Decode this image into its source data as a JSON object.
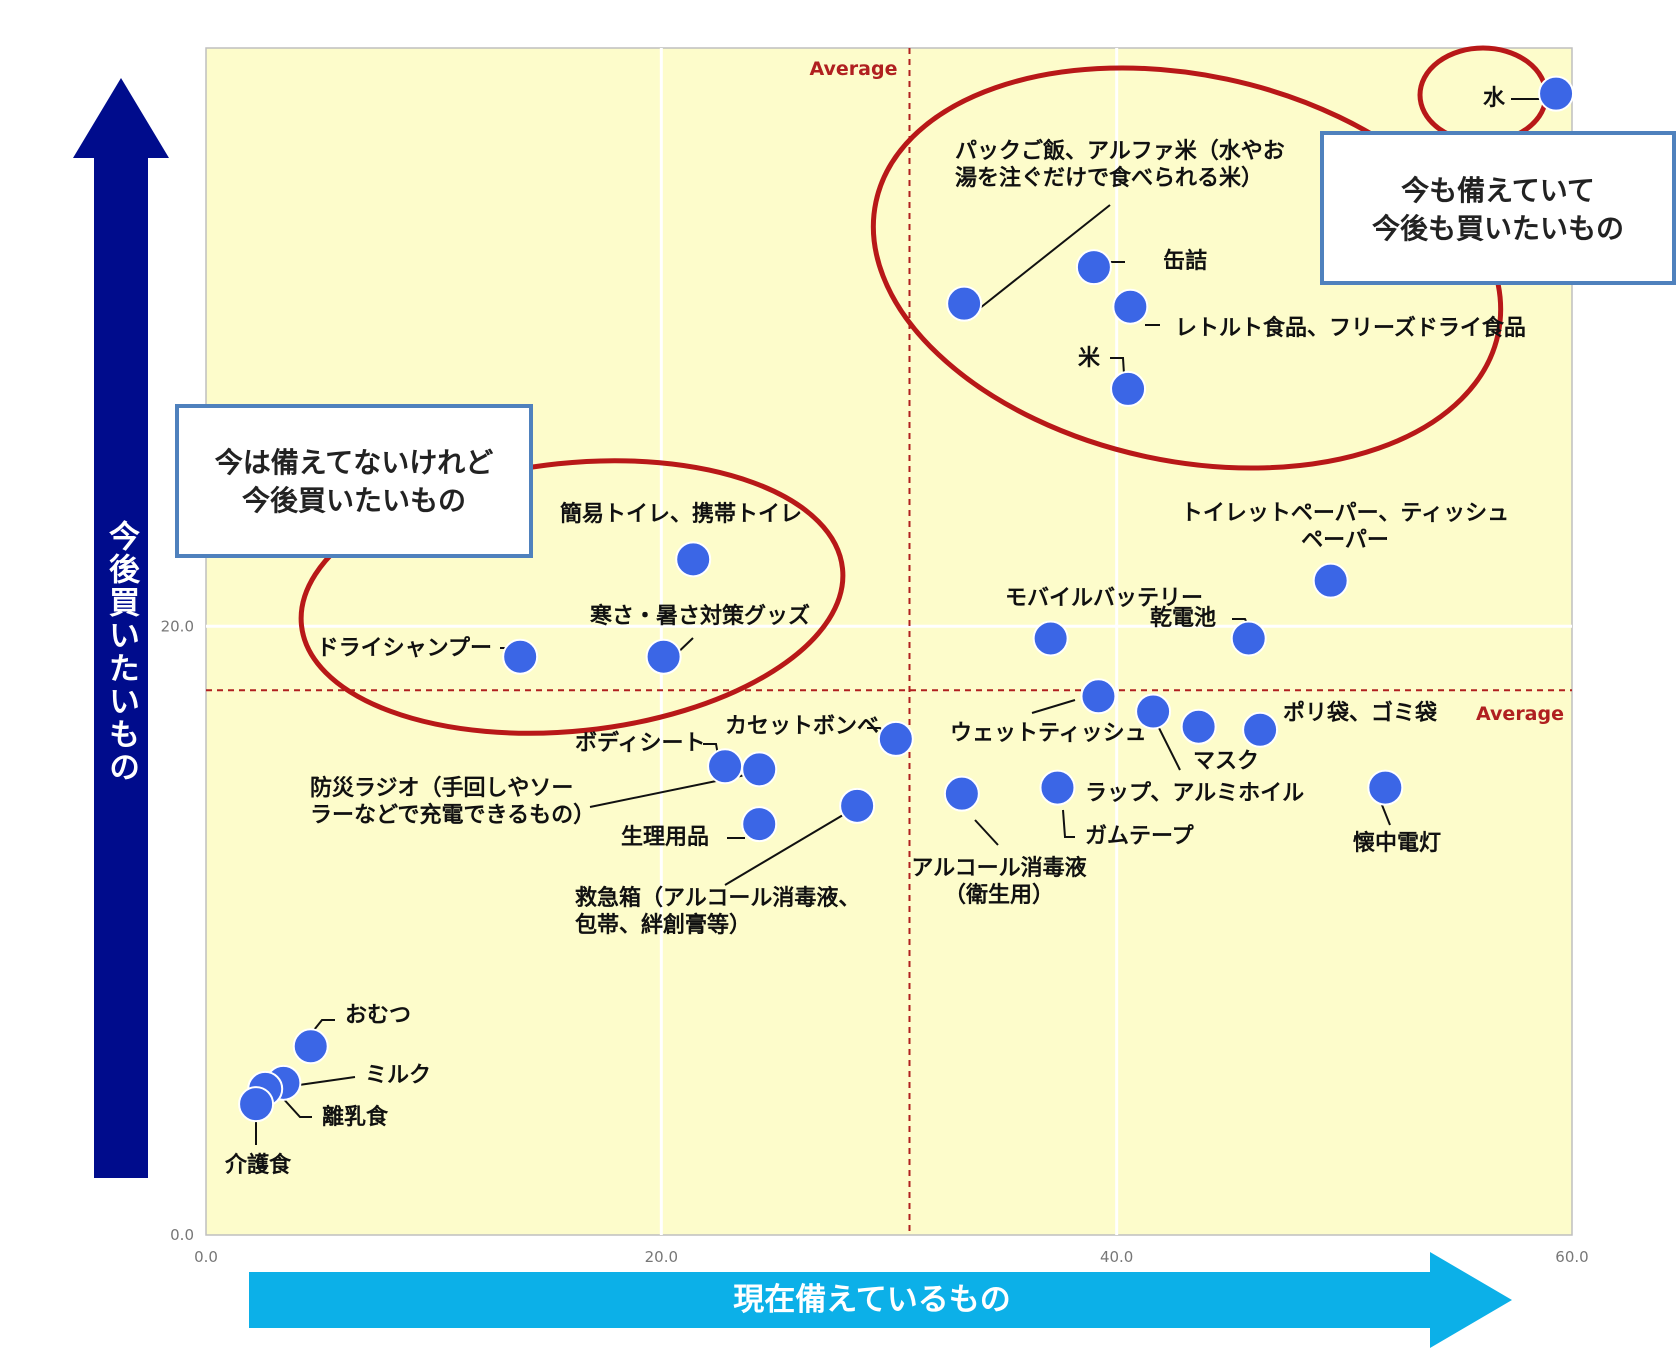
{
  "chart_data": {
    "type": "scatter",
    "xlabel": "現在備えているもの",
    "ylabel": "今後買いたいもの",
    "xlim": [
      0,
      60
    ],
    "ylim": [
      0,
      39
    ],
    "xticks": [
      "0.0",
      "20.0",
      "40.0",
      "60.0"
    ],
    "yticks": [
      "0.0",
      "20.0"
    ],
    "average_label": "Average",
    "average_x": 30.9,
    "average_y": 17.9,
    "grid": true,
    "colors": {
      "point": "#3b66e6",
      "plot_bg": "#fdfccb",
      "grid": "#ffffff",
      "average_line": "#b02020",
      "ellipse": "#b81818",
      "x_arrow": "#0cb0e8",
      "y_arrow": "#000c8c",
      "callout_border": "#4f81bd"
    },
    "points": [
      {
        "name": "水",
        "x": 59.3,
        "y": 37.5
      },
      {
        "name": "パックご飯、アルファ米（水やお湯を注ぐだけで食べられる米）",
        "x": 33.3,
        "y": 30.6
      },
      {
        "name": "缶詰",
        "x": 39.0,
        "y": 31.8
      },
      {
        "name": "レトルト食品、フリーズドライ食品",
        "x": 40.6,
        "y": 30.5
      },
      {
        "name": "米",
        "x": 40.5,
        "y": 27.8
      },
      {
        "name": "トイレットペーパー、ティッシュペーパー",
        "x": 49.4,
        "y": 21.5
      },
      {
        "name": "乾電池",
        "x": 45.8,
        "y": 19.6
      },
      {
        "name": "モバイルバッテリー",
        "x": 37.1,
        "y": 19.6
      },
      {
        "name": "ウェットティッシュ",
        "x": 39.2,
        "y": 17.7
      },
      {
        "name": "ポリ袋、ゴミ袋",
        "x": 46.3,
        "y": 16.6
      },
      {
        "name": "マスク",
        "x": 43.6,
        "y": 16.7
      },
      {
        "name": "ラップ、アルミホイル",
        "x": 41.6,
        "y": 17.2
      },
      {
        "name": "ガムテープ",
        "x": 37.4,
        "y": 14.7
      },
      {
        "name": "懐中電灯",
        "x": 51.8,
        "y": 14.7
      },
      {
        "name": "アルコール消毒液（衛生用）",
        "x": 33.2,
        "y": 14.5
      },
      {
        "name": "簡易トイレ、携帯トイレ",
        "x": 21.4,
        "y": 22.2
      },
      {
        "name": "寒さ・暑さ対策グッズ",
        "x": 20.1,
        "y": 19.0
      },
      {
        "name": "ドライシャンプー",
        "x": 13.8,
        "y": 19.0
      },
      {
        "name": "カセットボンベ",
        "x": 30.3,
        "y": 16.3
      },
      {
        "name": "ボディシート",
        "x": 22.8,
        "y": 15.4
      },
      {
        "name": "防災ラジオ（手回しやソーラーなどで充電できるもの）",
        "x": 24.3,
        "y": 15.3
      },
      {
        "name": "生理用品",
        "x": 24.3,
        "y": 13.5
      },
      {
        "name": "救急箱（アルコール消毒液、包帯、絆創膏等）",
        "x": 28.6,
        "y": 14.1
      },
      {
        "name": "おむつ",
        "x": 4.6,
        "y": 6.2
      },
      {
        "name": "ミルク",
        "x": 3.4,
        "y": 5.0
      },
      {
        "name": "離乳食",
        "x": 2.6,
        "y": 4.8
      },
      {
        "name": "介護食",
        "x": 2.2,
        "y": 4.3
      }
    ],
    "callouts": [
      {
        "lines": [
          "今も備えていて",
          "今後も買いたいもの"
        ]
      },
      {
        "lines": [
          "今は備えてないけれど",
          "今後買いたいもの"
        ]
      }
    ]
  }
}
